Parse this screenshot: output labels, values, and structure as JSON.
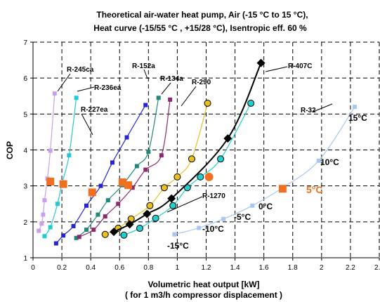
{
  "chart_data": {
    "type": "scatter",
    "title_lines": [
      "Theoretical air-water heat pump, Air (-15 °C to 15 °C),",
      "Heat curve (-15/55 °C , +15/28 °C), Isentropic eff. 60 %"
    ],
    "xlabel_lines": [
      "Volumetric heat output [kW]",
      "( for 1 m3/h compressor displacement )"
    ],
    "ylabel": "COP",
    "xlim": [
      0,
      2.4
    ],
    "ylim": [
      1,
      7
    ],
    "x_ticks": [
      "0",
      "0.2",
      "0.4",
      "0.6",
      "0.8",
      "1",
      "1.2",
      "1.4",
      "1.6",
      "1.8",
      "2",
      "2.2",
      "2.4"
    ],
    "y_ticks": [
      "1",
      "2",
      "3",
      "4",
      "5",
      "6",
      "7"
    ],
    "grid": "dashed",
    "series": [
      {
        "name": "R-245ca",
        "color": "#c8a0e8",
        "marker": "square",
        "points": [
          [
            0.04,
            1.75
          ],
          [
            0.06,
            1.95
          ],
          [
            0.07,
            2.2
          ],
          [
            0.08,
            2.6
          ],
          [
            0.1,
            3.2
          ],
          [
            0.12,
            3.98
          ],
          [
            0.15,
            5.57
          ]
        ]
      },
      {
        "name": "R-236ea",
        "color": "#22c8d2",
        "marker": "square",
        "points": [
          [
            0.08,
            1.6
          ],
          [
            0.12,
            1.85
          ],
          [
            0.17,
            2.5
          ],
          [
            0.2,
            3.05
          ],
          [
            0.25,
            3.85
          ],
          [
            0.3,
            5.45
          ]
        ]
      },
      {
        "name": "R-227ea",
        "color": "#2525d6",
        "marker": "square",
        "points": [
          [
            0.16,
            1.4
          ],
          [
            0.21,
            1.62
          ],
          [
            0.28,
            1.88
          ],
          [
            0.37,
            2.45
          ],
          [
            0.47,
            3.0
          ],
          [
            0.55,
            3.65
          ],
          [
            0.65,
            4.35
          ],
          [
            0.78,
            5.25
          ]
        ]
      },
      {
        "name": "R-152a",
        "color": "#208878",
        "marker": "square",
        "points": [
          [
            0.3,
            1.55
          ],
          [
            0.37,
            1.78
          ],
          [
            0.45,
            2.2
          ],
          [
            0.52,
            2.6
          ],
          [
            0.62,
            3.02
          ],
          [
            0.72,
            3.55
          ],
          [
            0.8,
            3.95
          ],
          [
            0.87,
            5.45
          ]
        ]
      },
      {
        "name": "R-134a",
        "color": "#8c2a70",
        "marker": "square",
        "points": [
          [
            0.32,
            1.58
          ],
          [
            0.42,
            1.78
          ],
          [
            0.5,
            2.15
          ],
          [
            0.59,
            2.5
          ],
          [
            0.69,
            2.95
          ],
          [
            0.78,
            3.45
          ],
          [
            0.89,
            3.85
          ],
          [
            0.95,
            5.4
          ]
        ]
      },
      {
        "name": "R-290",
        "color": "#e8c020",
        "marker": "circle",
        "points": [
          [
            0.5,
            1.65
          ],
          [
            0.59,
            1.82
          ],
          [
            0.68,
            2.08
          ],
          [
            0.81,
            2.45
          ],
          [
            0.91,
            2.95
          ],
          [
            1.0,
            3.25
          ],
          [
            1.1,
            3.75
          ],
          [
            1.21,
            5.3
          ]
        ]
      },
      {
        "name": "R-1270",
        "color": "#20d0d0",
        "marker": "circle",
        "points": [
          [
            0.63,
            1.63
          ],
          [
            0.74,
            1.82
          ],
          [
            0.85,
            2.1
          ],
          [
            0.97,
            2.45
          ],
          [
            1.07,
            2.95
          ],
          [
            1.16,
            3.25
          ],
          [
            1.3,
            3.75
          ],
          [
            1.51,
            5.3
          ]
        ]
      },
      {
        "name": "R-407C",
        "color": "#000000",
        "marker": "diamond",
        "points": [
          [
            0.56,
            1.72
          ],
          [
            0.67,
            1.93
          ],
          [
            0.79,
            2.22
          ],
          [
            0.96,
            2.65
          ],
          [
            1.35,
            4.32
          ],
          [
            1.58,
            6.42
          ]
        ]
      },
      {
        "name": "R-32",
        "color": "#a8c8f0",
        "marker": "square",
        "points": [
          [
            0.98,
            1.65
          ],
          [
            1.15,
            1.83
          ],
          [
            1.32,
            2.08
          ],
          [
            1.52,
            2.45
          ],
          [
            1.73,
            2.95
          ],
          [
            1.98,
            3.7
          ],
          [
            2.23,
            5.2
          ]
        ]
      }
    ],
    "highlighted_points": [
      [
        0.12,
        3.12
      ],
      [
        0.21,
        3.05
      ],
      [
        0.41,
        2.82
      ],
      [
        0.62,
        3.1
      ],
      [
        0.66,
        3.02
      ],
      [
        1.22,
        3.25
      ],
      [
        1.73,
        2.92
      ]
    ],
    "highlight_color": "#f07020",
    "temperature_labels": [
      "-15°C",
      "-10°C",
      "-5°C",
      "0°C",
      "5°C",
      "10°C",
      "15°C"
    ],
    "highlighted_temperature": "5°C"
  }
}
